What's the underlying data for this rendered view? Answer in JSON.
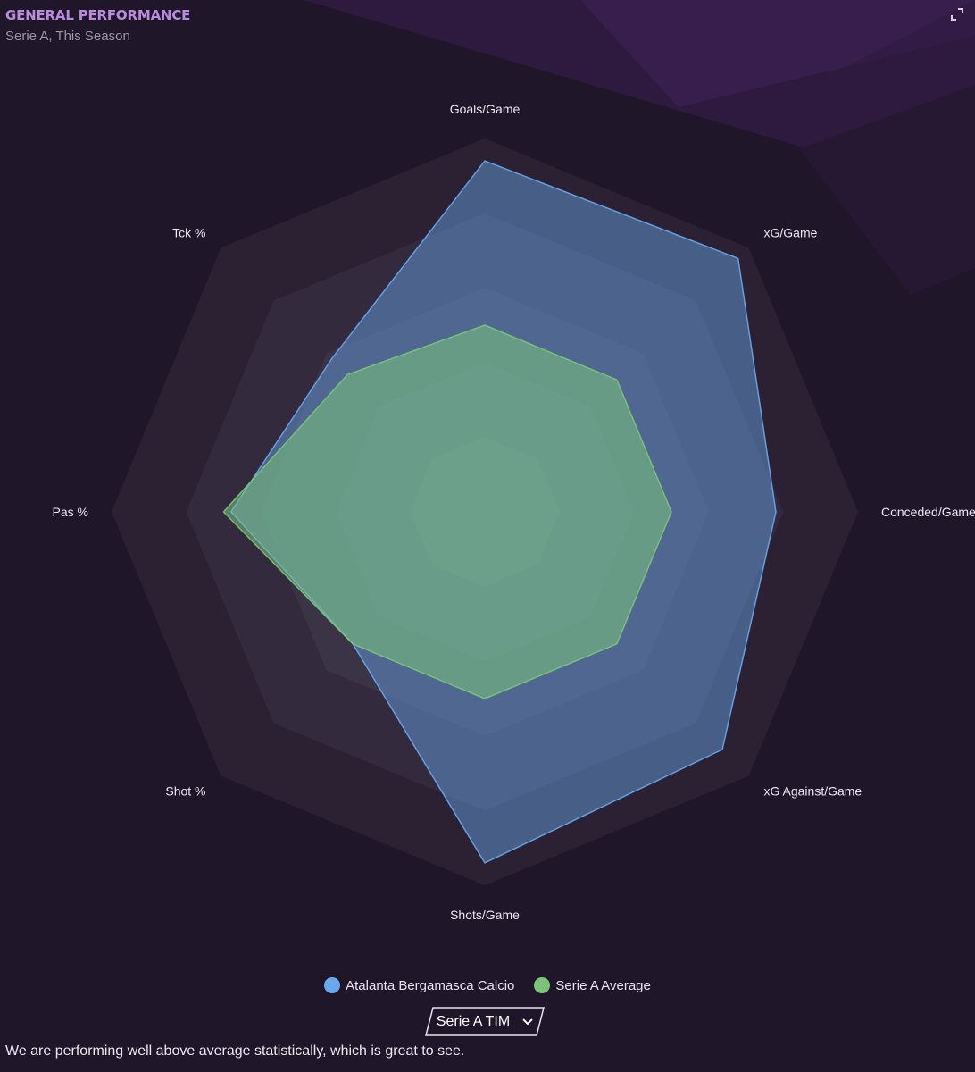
{
  "header": {
    "title": "GENERAL PERFORMANCE",
    "subtitle": "Serie A, This Season"
  },
  "colors": {
    "background": "#201629",
    "accent_title": "#b98ce0",
    "team": "#6aa9ee",
    "average": "#7cc47c"
  },
  "icons": {
    "expand": "expand-icon",
    "dropdown": "chevron-down-icon"
  },
  "chart_data": {
    "type": "radar",
    "axes": [
      "Goals/Game",
      "xG/Game",
      "Conceded/Game",
      "xG Against/Game",
      "Shots/Game",
      "Shot %",
      "Pas %",
      "Tck %"
    ],
    "rlim": [
      0,
      5
    ],
    "rings": 5,
    "grid": true,
    "legend_placement": "bottom-center",
    "series": [
      {
        "name": "Atalanta Bergamasca Calcio",
        "color": "#6aa9ee",
        "values": [
          4.7,
          4.8,
          3.9,
          4.5,
          4.7,
          2.5,
          3.4,
          2.9
        ]
      },
      {
        "name": "Serie A Average",
        "color": "#7cc47c",
        "values": [
          2.5,
          2.5,
          2.5,
          2.5,
          2.5,
          2.5,
          3.5,
          2.6
        ]
      }
    ]
  },
  "legend": {
    "items": [
      {
        "label": "Atalanta Bergamasca Calcio",
        "color": "#6aa9ee"
      },
      {
        "label": "Serie A Average",
        "color": "#7cc47c"
      }
    ]
  },
  "dropdown": {
    "selected": "Serie A TIM"
  },
  "footer": {
    "text": "We are performing well above average statistically, which is great to see."
  }
}
